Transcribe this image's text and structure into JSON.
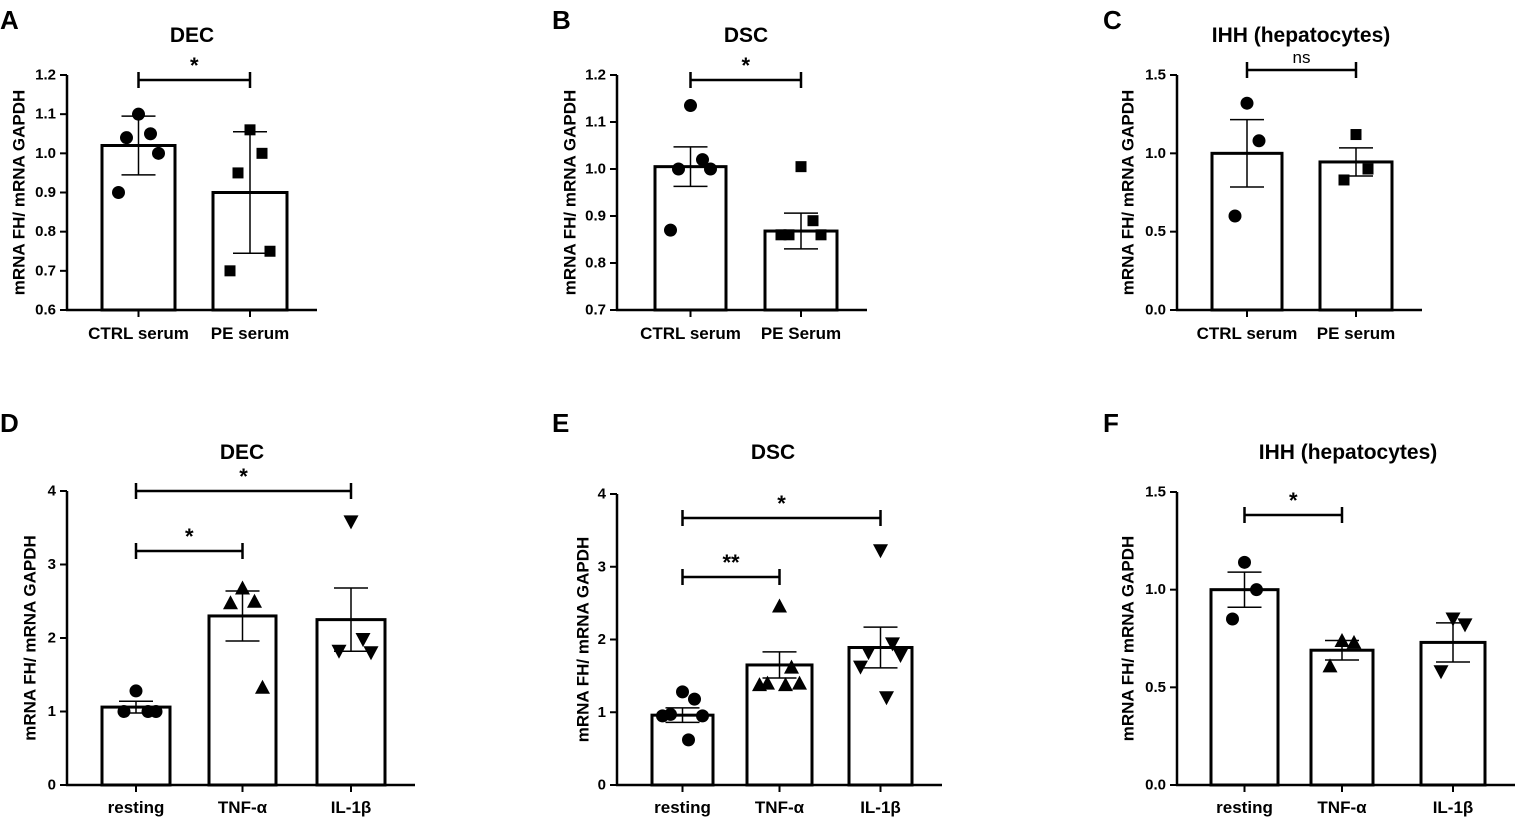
{
  "chart_data": [
    {
      "panel": "A",
      "type": "bar",
      "title": "DEC",
      "ylabel": "mRNA FH/ mRNA GAPDH",
      "ylim": [
        0.6,
        1.2
      ],
      "yticks": [
        "0.6",
        "0.7",
        "0.8",
        "0.9",
        "1.0",
        "1.1",
        "1.2"
      ],
      "categories": [
        "CTRL serum",
        "PE serum"
      ],
      "values": [
        1.02,
        0.9
      ],
      "errors": [
        0.075,
        0.155
      ],
      "markers": [
        "circle",
        "square"
      ],
      "points": [
        [
          1.1,
          1.05,
          1.04,
          1.0,
          0.9
        ],
        [
          1.06,
          1.0,
          0.95,
          0.75,
          0.7
        ]
      ],
      "significance": [
        {
          "from": 0,
          "to": 1,
          "label": "*"
        }
      ]
    },
    {
      "panel": "B",
      "type": "bar",
      "title": "DSC",
      "ylabel": "mRNA FH/ mRNA GAPDH",
      "ylim": [
        0.7,
        1.2
      ],
      "yticks": [
        "0.7",
        "0.8",
        "0.9",
        "1.0",
        "1.1",
        "1.2"
      ],
      "categories": [
        "CTRL serum",
        "PE Serum"
      ],
      "values": [
        1.005,
        0.868
      ],
      "errors": [
        0.042,
        0.038
      ],
      "markers": [
        "circle",
        "square"
      ],
      "points": [
        [
          1.135,
          1.02,
          1.0,
          1.0,
          0.87
        ],
        [
          1.005,
          0.89,
          0.86,
          0.86,
          0.86
        ]
      ],
      "significance": [
        {
          "from": 0,
          "to": 1,
          "label": "*"
        }
      ]
    },
    {
      "panel": "C",
      "type": "bar",
      "title": "IHH (hepatocytes)",
      "ylabel": "mRNA FH/ mRNA GAPDH",
      "ylim": [
        0.0,
        1.5
      ],
      "yticks": [
        "0.0",
        "0.5",
        "1.0",
        "1.5"
      ],
      "categories": [
        "CTRL serum",
        "PE serum"
      ],
      "values": [
        1.0,
        0.945
      ],
      "errors": [
        0.215,
        0.09
      ],
      "markers": [
        "circle",
        "square"
      ],
      "points": [
        [
          1.32,
          1.08,
          0.6
        ],
        [
          1.12,
          0.9,
          0.83
        ]
      ],
      "significance": [
        {
          "from": 0,
          "to": 1,
          "label": "ns"
        }
      ]
    },
    {
      "panel": "D",
      "type": "bar",
      "title": "DEC",
      "ylabel": "mRNA FH/ mRNA GAPDH",
      "ylim": [
        0,
        4
      ],
      "yticks": [
        "0",
        "1",
        "2",
        "3",
        "4"
      ],
      "categories": [
        "resting",
        "TNF-α",
        "IL-1β"
      ],
      "values": [
        1.06,
        2.3,
        2.25
      ],
      "errors": [
        0.08,
        0.34,
        0.43
      ],
      "markers": [
        "circle",
        "triangle-up",
        "triangle-down"
      ],
      "points": [
        [
          1.28,
          1.0,
          1.0,
          1.0
        ],
        [
          2.68,
          2.5,
          2.48,
          1.33
        ],
        [
          3.58,
          1.98,
          1.82,
          1.8
        ]
      ],
      "significance": [
        {
          "from": 0,
          "to": 1,
          "label": "*"
        },
        {
          "from": 0,
          "to": 2,
          "label": "*"
        }
      ]
    },
    {
      "panel": "E",
      "type": "bar",
      "title": "DSC",
      "ylabel": "mRNA FH/ mRNA GAPDH",
      "ylim": [
        0,
        4
      ],
      "yticks": [
        "0",
        "1",
        "2",
        "3",
        "4"
      ],
      "categories": [
        "resting",
        "TNF-α",
        "IL-1β"
      ],
      "values": [
        0.96,
        1.65,
        1.89
      ],
      "errors": [
        0.1,
        0.18,
        0.28
      ],
      "markers": [
        "circle",
        "triangle-up",
        "triangle-down"
      ],
      "points": [
        [
          1.28,
          1.18,
          0.97,
          0.95,
          0.95,
          0.62
        ],
        [
          2.46,
          1.62,
          1.4,
          1.4,
          1.38,
          1.38
        ],
        [
          3.22,
          1.94,
          1.82,
          1.78,
          1.62,
          1.2
        ]
      ],
      "significance": [
        {
          "from": 0,
          "to": 1,
          "label": "**"
        },
        {
          "from": 0,
          "to": 2,
          "label": "*"
        }
      ]
    },
    {
      "panel": "F",
      "type": "bar",
      "title": "IHH (hepatocytes)",
      "ylabel": "mRNA FH/ mRNA GAPDH",
      "ylim": [
        0.0,
        1.5
      ],
      "yticks": [
        "0.0",
        "0.5",
        "1.0",
        "1.5"
      ],
      "categories": [
        "resting",
        "TNF-α",
        "IL-1β"
      ],
      "values": [
        1.0,
        0.69,
        0.73
      ],
      "errors": [
        0.09,
        0.05,
        0.1
      ],
      "markers": [
        "circle",
        "triangle-up",
        "triangle-down"
      ],
      "points": [
        [
          1.14,
          1.0,
          0.85
        ],
        [
          0.74,
          0.73,
          0.61
        ],
        [
          0.85,
          0.82,
          0.58
        ]
      ],
      "significance": [
        {
          "from": 0,
          "to": 1,
          "label": "*"
        }
      ]
    }
  ]
}
